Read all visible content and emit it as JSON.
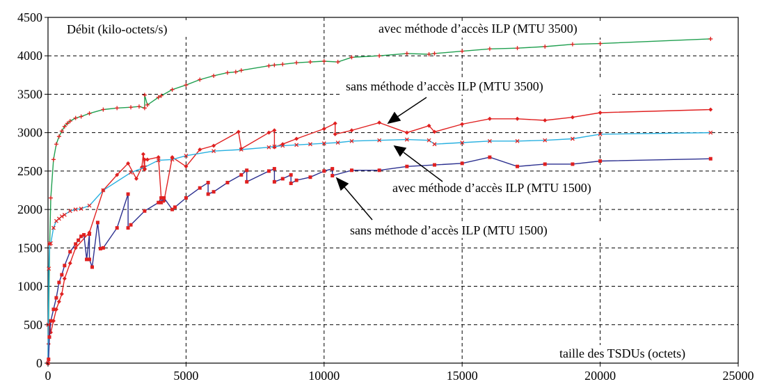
{
  "chart_data": {
    "type": "line",
    "xlabel": "taille des TSDUs (octets)",
    "ylabel": "Débit (kilo-octets/s)",
    "xlim": [
      0,
      25000
    ],
    "ylim": [
      0,
      4500
    ],
    "xticks": [
      0,
      5000,
      10000,
      15000,
      20000,
      25000
    ],
    "yticks": [
      0,
      500,
      1000,
      1500,
      2000,
      2500,
      3000,
      3500,
      4000,
      4500
    ],
    "grid": true,
    "annotations": [
      "avec méthode d’accès ILP (MTU 3500)",
      "sans méthode d’accès ILP (MTU 3500)",
      "avec méthode d’accès ILP (MTU 1500)",
      "sans méthode d’accès ILP (MTU 1500)"
    ],
    "series": [
      {
        "color": "#1f9f4f",
        "marker": "plus",
        "x": [
          0,
          20,
          60,
          100,
          200,
          300,
          400,
          500,
          600,
          700,
          800,
          1000,
          1200,
          1500,
          2000,
          2500,
          3000,
          3300,
          3500,
          3500,
          3600,
          4000,
          4100,
          4500,
          5000,
          5500,
          6000,
          6500,
          6800,
          7000,
          8000,
          8200,
          8500,
          9000,
          9500,
          10000,
          10500,
          11000,
          12000,
          13000,
          13800,
          14000,
          15000,
          16000,
          17000,
          18000,
          19000,
          20000,
          24000
        ],
        "y": [
          0,
          500,
          1550,
          2150,
          2650,
          2850,
          2950,
          3020,
          3080,
          3120,
          3150,
          3190,
          3210,
          3250,
          3300,
          3320,
          3330,
          3340,
          3320,
          3490,
          3360,
          3460,
          3480,
          3560,
          3620,
          3690,
          3740,
          3780,
          3790,
          3810,
          3870,
          3880,
          3890,
          3910,
          3920,
          3930,
          3920,
          3980,
          4000,
          4030,
          4020,
          4030,
          4060,
          4090,
          4100,
          4120,
          4150,
          4160,
          4220
        ]
      },
      {
        "color": "#e02020",
        "marker": "diamond",
        "x": [
          0,
          20,
          60,
          100,
          200,
          300,
          400,
          500,
          600,
          800,
          1000,
          1500,
          2000,
          2500,
          2900,
          3200,
          3400,
          3450,
          3500,
          3500,
          3600,
          4000,
          4100,
          4200,
          4500,
          5000,
          5500,
          6000,
          6900,
          7000,
          8000,
          8200,
          8200,
          8500,
          9000,
          10000,
          10400,
          10400,
          11000,
          12000,
          13000,
          13800,
          14000,
          15000,
          16000,
          17000,
          18000,
          19000,
          20000,
          24000
        ],
        "y": [
          0,
          250,
          500,
          400,
          550,
          700,
          800,
          900,
          1100,
          1300,
          1500,
          1700,
          2250,
          2450,
          2600,
          2400,
          2550,
          2720,
          2520,
          2650,
          2650,
          2680,
          2150,
          2110,
          2680,
          2560,
          2780,
          2830,
          3010,
          2790,
          3000,
          3030,
          2810,
          2850,
          2920,
          3050,
          3120,
          2980,
          3030,
          3130,
          3000,
          3090,
          3010,
          3110,
          3180,
          3180,
          3160,
          3200,
          3260,
          3300
        ]
      },
      {
        "color": "#28b0e0",
        "marker": "cross",
        "x": [
          0,
          10,
          30,
          60,
          100,
          200,
          300,
          400,
          500,
          600,
          800,
          1000,
          1200,
          1500,
          2000,
          3000,
          3500,
          4000,
          4500,
          5000,
          6000,
          7000,
          8000,
          8200,
          8500,
          9000,
          9500,
          10000,
          10500,
          11000,
          12000,
          13000,
          13800,
          14000,
          15000,
          16000,
          17000,
          18000,
          19000,
          20000,
          24000
        ],
        "y": [
          0,
          500,
          1230,
          1550,
          1560,
          1760,
          1850,
          1880,
          1910,
          1930,
          1980,
          2000,
          2010,
          2050,
          2250,
          2480,
          2550,
          2640,
          2650,
          2700,
          2760,
          2780,
          2810,
          2820,
          2830,
          2840,
          2850,
          2860,
          2870,
          2890,
          2900,
          2910,
          2900,
          2850,
          2870,
          2890,
          2890,
          2900,
          2920,
          2980,
          3000
        ]
      },
      {
        "color": "#2b2f8f",
        "marker": "square",
        "x": [
          0,
          20,
          50,
          100,
          200,
          300,
          400,
          500,
          600,
          800,
          1000,
          1100,
          1200,
          1300,
          1400,
          1500,
          1500,
          1600,
          1800,
          1900,
          2000,
          2500,
          2900,
          2900,
          3000,
          3500,
          4000,
          4100,
          4100,
          4200,
          4500,
          4600,
          5000,
          5500,
          5800,
          5800,
          6000,
          6500,
          7000,
          7200,
          7200,
          8000,
          8200,
          8200,
          8500,
          8800,
          8800,
          9000,
          9500,
          10000,
          10300,
          10300,
          11000,
          12000,
          13000,
          14000,
          15000,
          16000,
          17000,
          18000,
          19000,
          20000,
          24000
        ],
        "y": [
          0,
          50,
          340,
          550,
          700,
          850,
          1050,
          1150,
          1270,
          1450,
          1550,
          1600,
          1650,
          1670,
          1350,
          1680,
          1350,
          1250,
          1830,
          1490,
          1500,
          1760,
          2200,
          1760,
          1800,
          1980,
          2090,
          2150,
          2090,
          2150,
          2000,
          2030,
          2150,
          2280,
          2350,
          2200,
          2230,
          2350,
          2450,
          2510,
          2360,
          2500,
          2530,
          2360,
          2400,
          2450,
          2340,
          2380,
          2420,
          2500,
          2530,
          2440,
          2510,
          2510,
          2560,
          2580,
          2600,
          2680,
          2560,
          2590,
          2590,
          2630,
          2660
        ]
      }
    ]
  }
}
